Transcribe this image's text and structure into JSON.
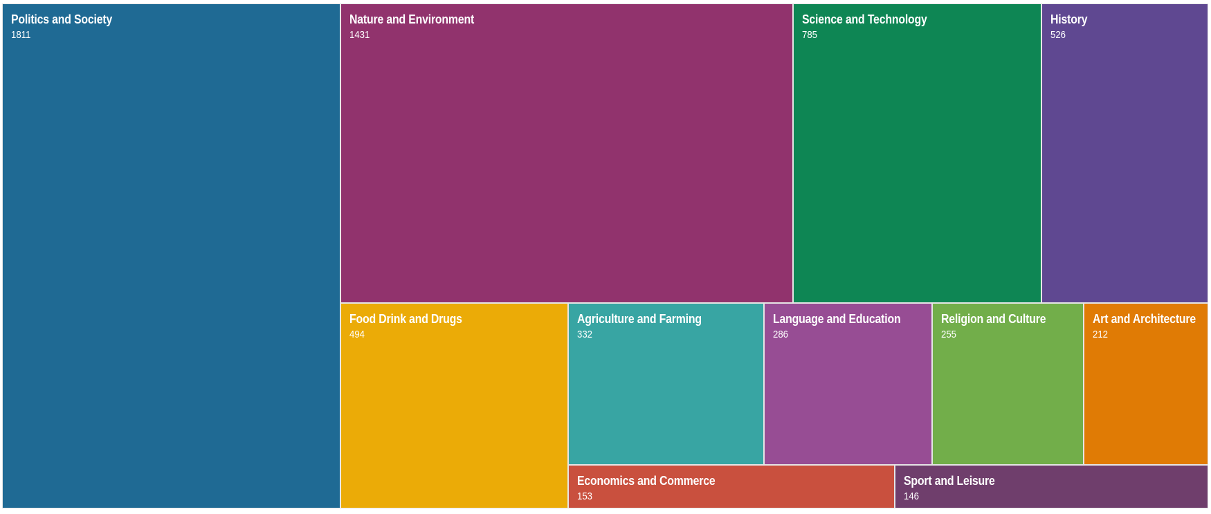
{
  "chart_data": {
    "type": "treemap",
    "items": [
      {
        "name": "Politics and Society",
        "value": 1811,
        "color": "#1f6a94"
      },
      {
        "name": "Nature and Environment",
        "value": 1431,
        "color": "#91336d"
      },
      {
        "name": "Science and Technology",
        "value": 785,
        "color": "#0e8654"
      },
      {
        "name": "History",
        "value": 526,
        "color": "#5f4891"
      },
      {
        "name": "Food Drink and Drugs",
        "value": 494,
        "color": "#ebab07"
      },
      {
        "name": "Agriculture and Farming",
        "value": 332,
        "color": "#38a5a3"
      },
      {
        "name": "Language and Education",
        "value": 286,
        "color": "#974d94"
      },
      {
        "name": "Religion and Culture",
        "value": 255,
        "color": "#72ae4a"
      },
      {
        "name": "Art and Architecture",
        "value": 212,
        "color": "#e07b05"
      },
      {
        "name": "Economics and Commerce",
        "value": 153,
        "color": "#c9503e"
      },
      {
        "name": "Sport and Leisure",
        "value": 146,
        "color": "#6f3e6c"
      }
    ]
  }
}
